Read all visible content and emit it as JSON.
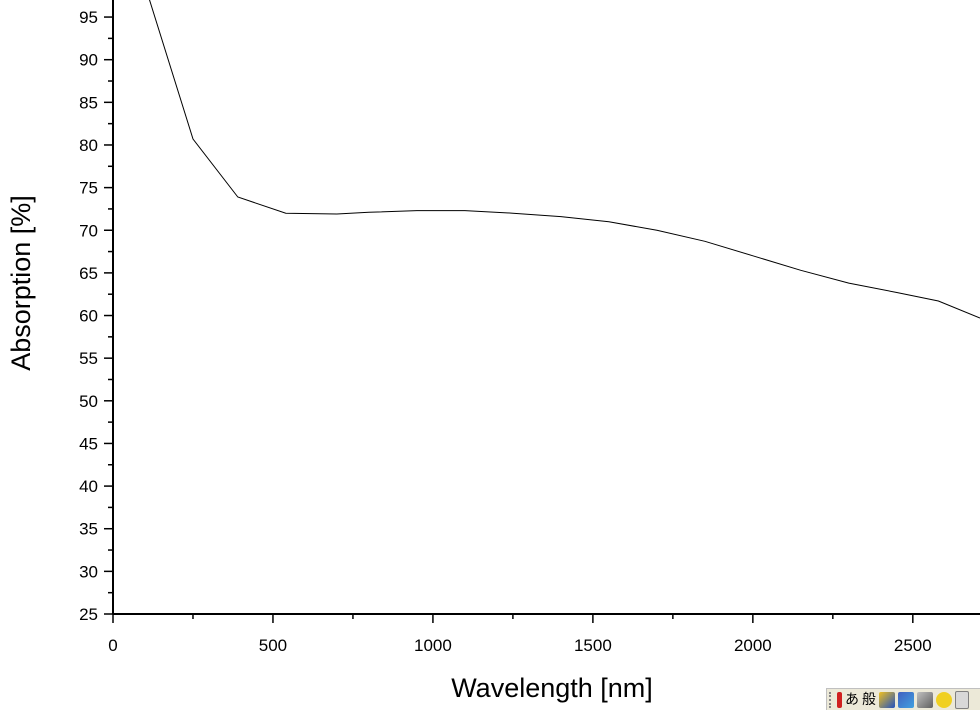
{
  "chart_data": {
    "type": "line",
    "xlabel": "Wavelength [nm]",
    "ylabel": "Absorption [%]",
    "xlim": [
      0,
      2710
    ],
    "ylim": [
      25,
      97
    ],
    "xticks": [
      0,
      500,
      1000,
      1500,
      2000,
      2500
    ],
    "yticks": [
      25,
      30,
      35,
      40,
      45,
      50,
      55,
      60,
      65,
      70,
      75,
      80,
      85,
      90,
      95
    ],
    "grid": false,
    "series": [
      {
        "color": "#000000",
        "x": [
          110,
          250,
          390,
          540,
          700,
          800,
          950,
          1100,
          1250,
          1400,
          1550,
          1700,
          1850,
          2000,
          2150,
          2300,
          2450,
          2580,
          2710
        ],
        "y": [
          97.5,
          80.7,
          73.9,
          72.0,
          71.9,
          72.1,
          72.3,
          72.3,
          72.0,
          71.6,
          71.0,
          70.0,
          68.7,
          67.0,
          65.3,
          63.8,
          62.7,
          61.7,
          59.7
        ]
      }
    ]
  },
  "tray": {
    "hiragana": "あ",
    "mode": "般"
  },
  "colors": {
    "background": "#ffffff",
    "axis": "#000000",
    "line": "#000000",
    "tray": "#ece9d8"
  }
}
